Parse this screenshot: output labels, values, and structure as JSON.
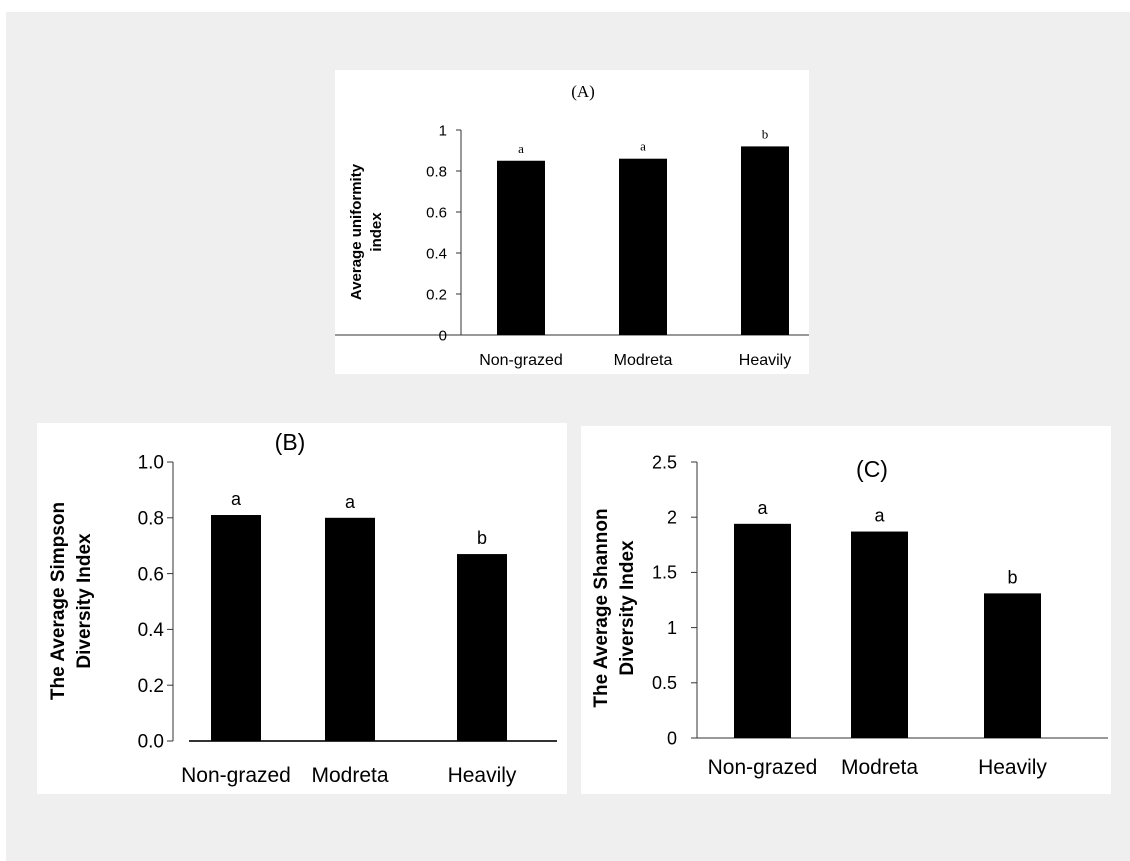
{
  "chart_data": [
    {
      "type": "bar",
      "panel_label": "(A)",
      "title": "",
      "xlabel": "",
      "ylabel": "Average uniformity index",
      "ylabel_lines": [
        "Average uniformity",
        "index"
      ],
      "categories": [
        "Non-grazed",
        "Modreta",
        "Heavily"
      ],
      "values": [
        0.85,
        0.86,
        0.92
      ],
      "bar_labels": [
        "a",
        "a",
        "b"
      ],
      "ylim": [
        0,
        1
      ],
      "yticks": [
        0,
        0.2,
        0.4,
        0.6,
        0.8,
        1
      ],
      "ytick_labels": [
        "0",
        "0.2",
        "0.4",
        "0.6",
        "0.8",
        "1"
      ],
      "grid": false,
      "bar_color": "#000000"
    },
    {
      "type": "bar",
      "panel_label": "(B)",
      "title": "",
      "xlabel": "",
      "ylabel": "The Average Simpson Diversity Index",
      "ylabel_lines": [
        "The Average Simpson",
        "Diversity Index"
      ],
      "categories": [
        "Non-grazed",
        "Modreta",
        "Heavily"
      ],
      "values": [
        0.81,
        0.8,
        0.67
      ],
      "bar_labels": [
        "a",
        "a",
        "b"
      ],
      "ylim": [
        0,
        1
      ],
      "yticks": [
        0,
        0.2,
        0.4,
        0.6,
        0.8,
        1
      ],
      "ytick_labels": [
        "0.0",
        "0.2",
        "0.4",
        "0.6",
        "0.8",
        "1.0"
      ],
      "grid": false,
      "bar_color": "#000000"
    },
    {
      "type": "bar",
      "panel_label": "(C)",
      "title": "",
      "xlabel": "",
      "ylabel": "The Average Shannon Diversity Index",
      "ylabel_lines": [
        "The Average Shannon",
        "Diversity Index"
      ],
      "categories": [
        "Non-grazed",
        "Modreta",
        "Heavily"
      ],
      "values": [
        1.94,
        1.87,
        1.31
      ],
      "bar_labels": [
        "a",
        "a",
        "b"
      ],
      "ylim": [
        0,
        2.5
      ],
      "yticks": [
        0,
        0.5,
        1,
        1.5,
        2,
        2.5
      ],
      "ytick_labels": [
        "0",
        "0.5",
        "1",
        "1.5",
        "2",
        "2.5"
      ],
      "grid": false,
      "bar_color": "#000000"
    }
  ]
}
